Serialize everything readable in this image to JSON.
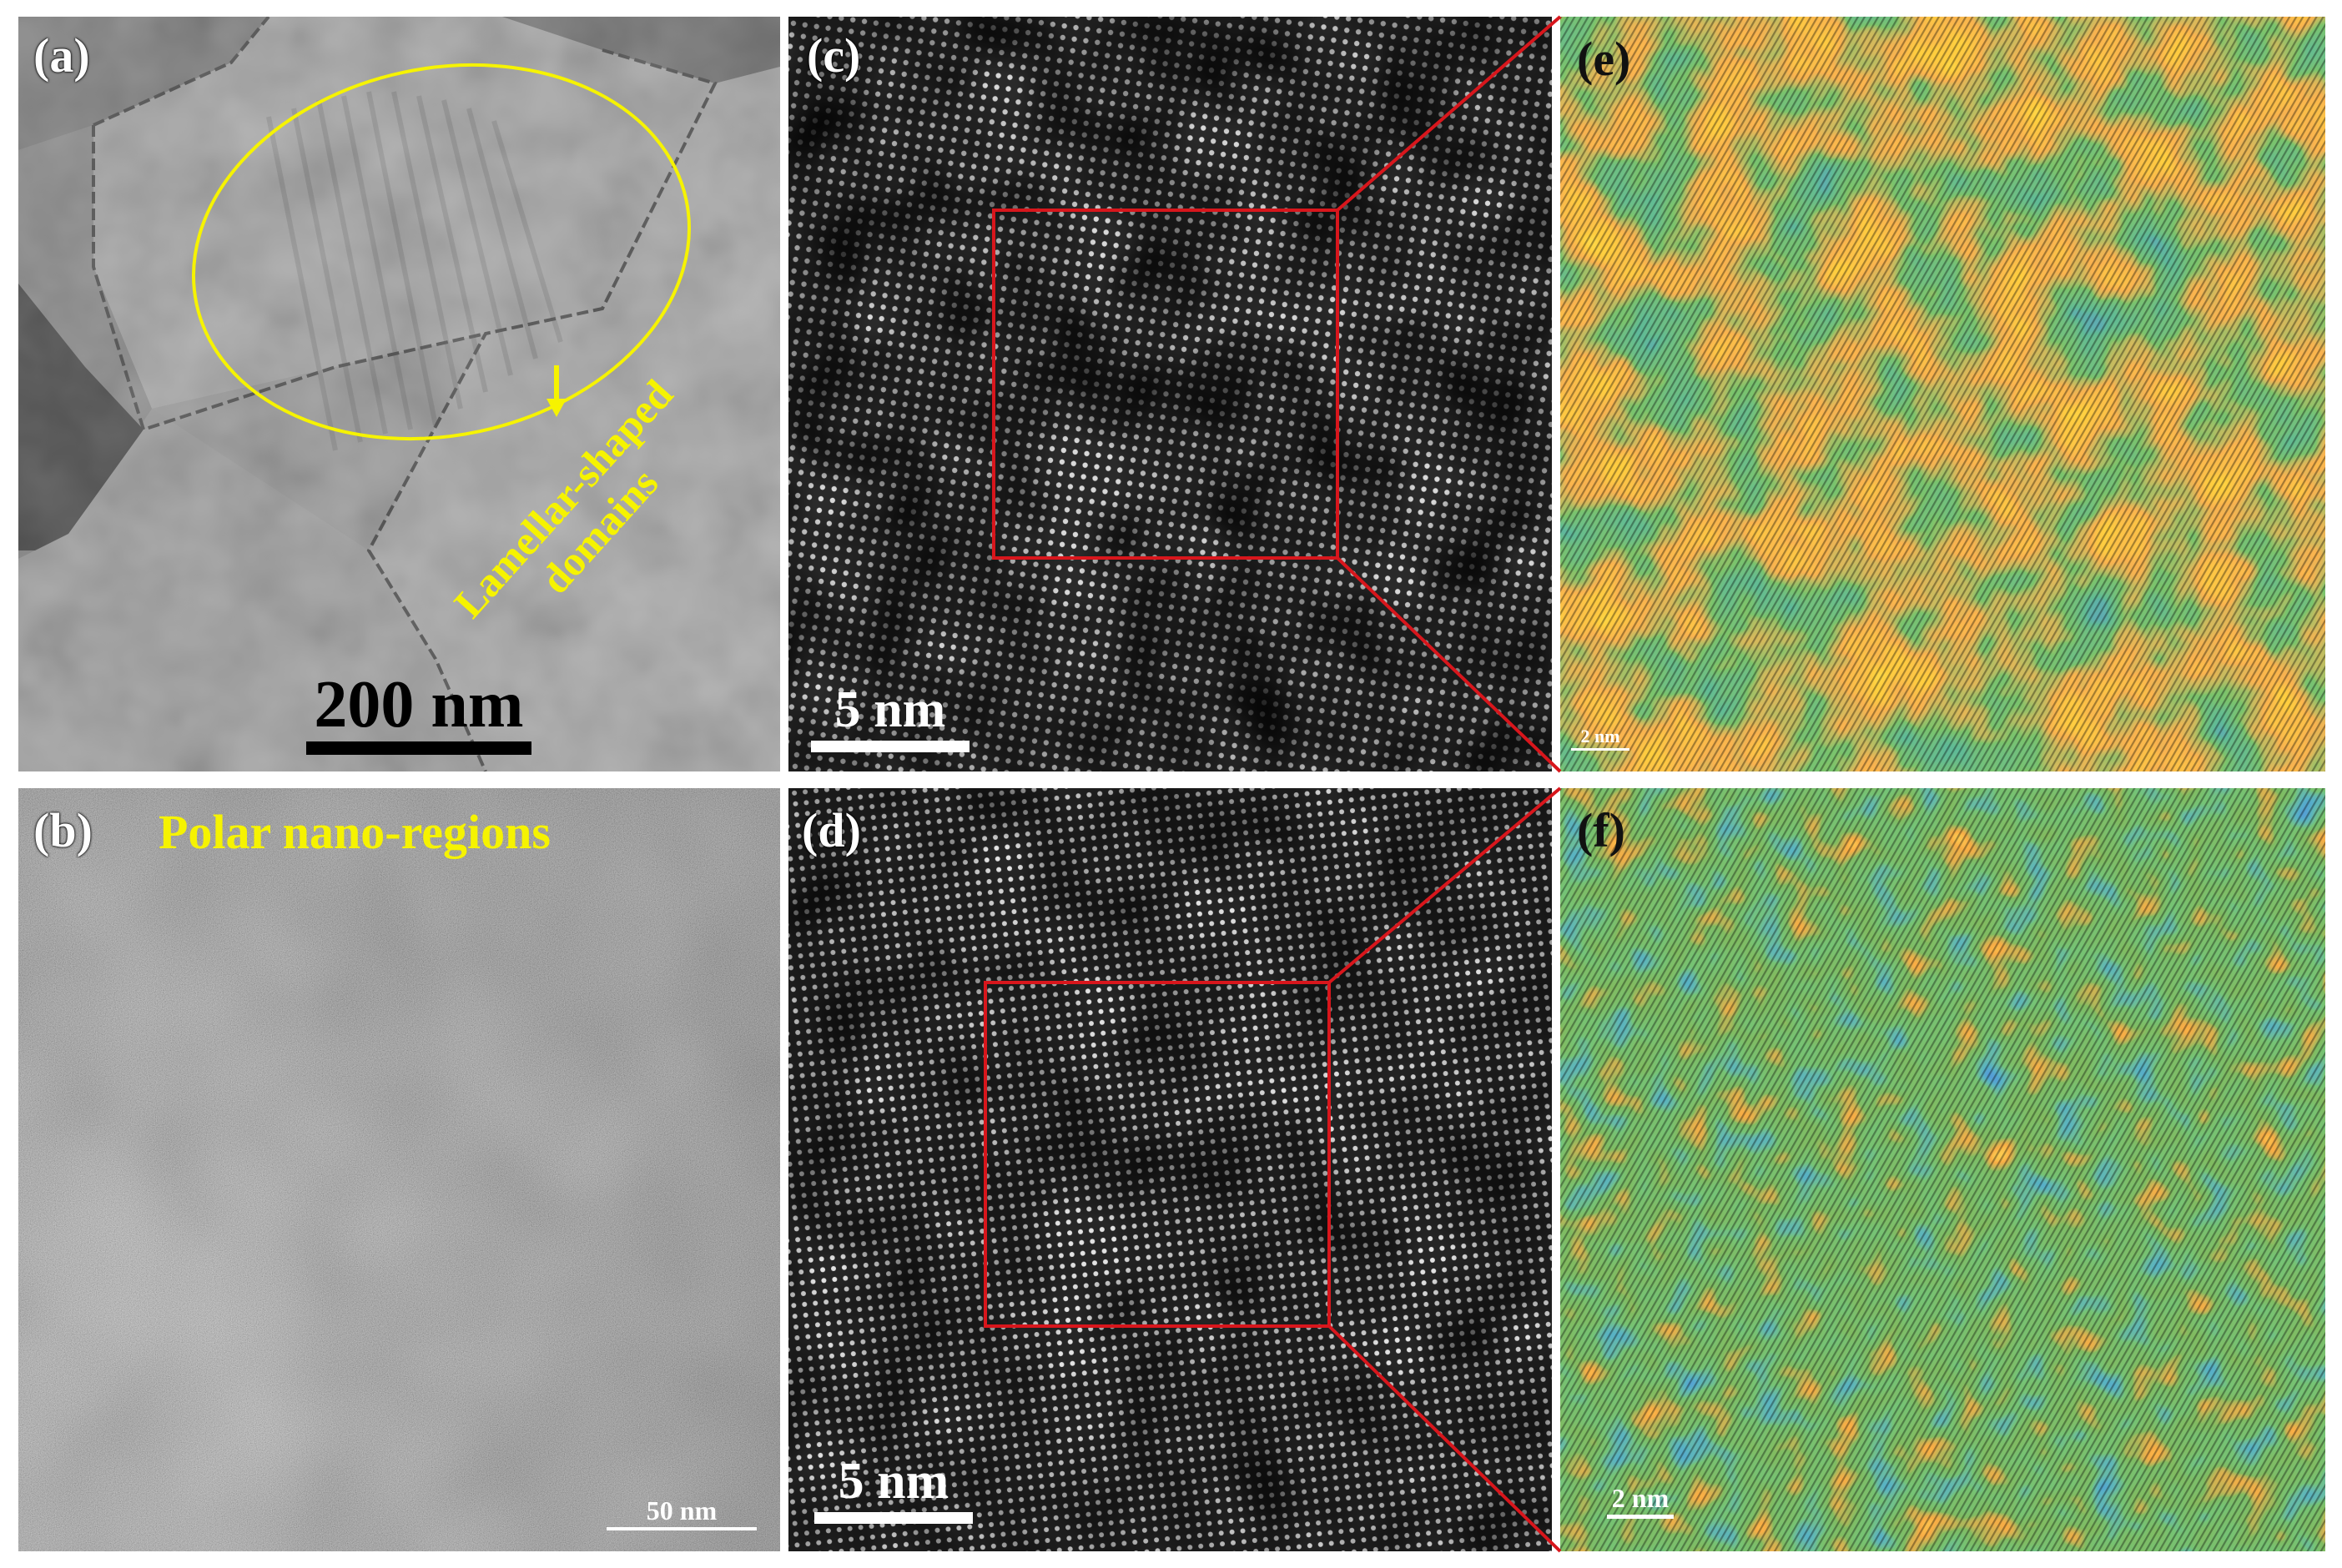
{
  "panels": {
    "a": {
      "label": "(a)",
      "scale_bar": "200 nm",
      "annotation_line1": "Lamellar-shaped",
      "annotation_line2": "domains"
    },
    "b": {
      "label": "(b)",
      "scale_bar": "50 nm",
      "annotation": "Polar nano-regions"
    },
    "c": {
      "label": "(c)",
      "scale_bar": "5 nm"
    },
    "d": {
      "label": "(d)",
      "scale_bar": "5 nm"
    },
    "e": {
      "label": "(e)",
      "scale_bar": "2 nm"
    },
    "f": {
      "label": "(f)",
      "scale_bar": "2 nm"
    }
  },
  "colors": {
    "annotation": "#f6f300",
    "roi_box": "#d8161c",
    "phase_map_high": "#ff4a12",
    "phase_map_mid": "#2f8a2a",
    "phase_map_low": "#1b3fbf"
  }
}
